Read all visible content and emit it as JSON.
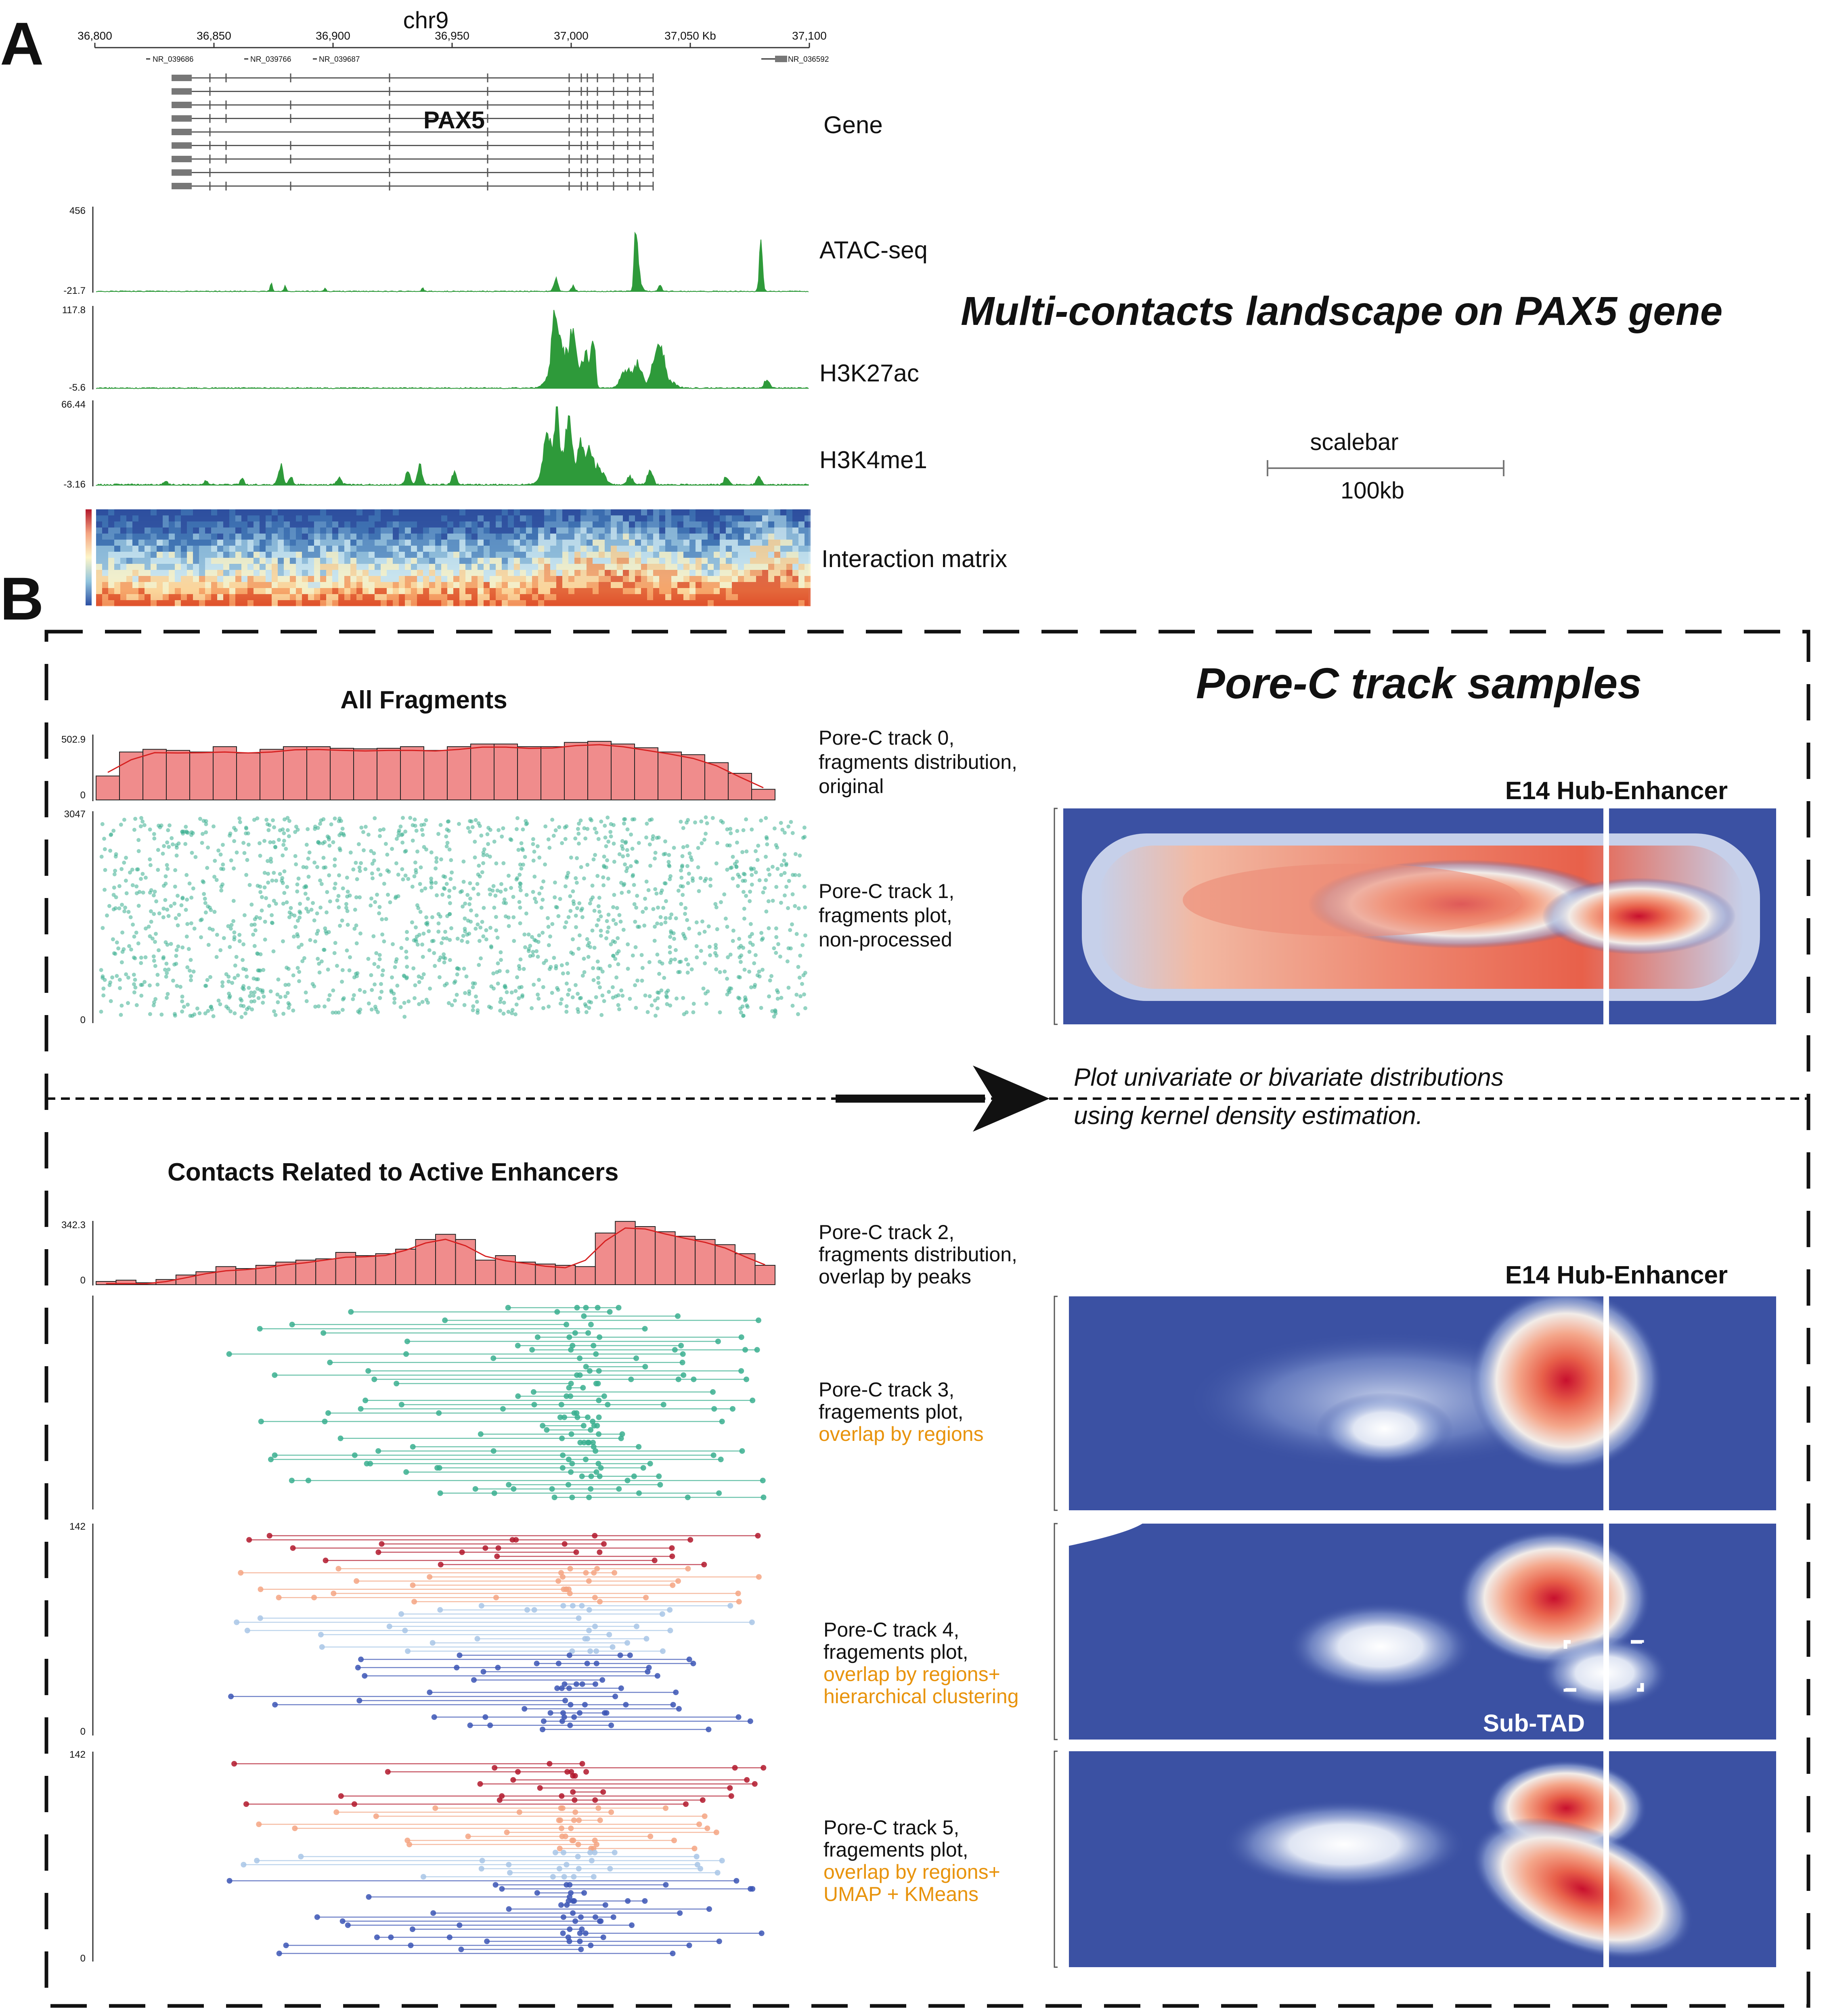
{
  "panel_a": {
    "letter": "A",
    "chrom": "chr9",
    "coords": [
      "36,800",
      "36,850",
      "36,900",
      "36,950",
      "37,000",
      "37,050 Kb",
      "37,100"
    ],
    "refseq": [
      "NR_039686",
      "NR_039766",
      "NR_039687",
      "NR_036592"
    ],
    "gene_name": "PAX5",
    "tracks": [
      {
        "label": "Gene"
      },
      {
        "label": "ATAC-seq",
        "max": "456",
        "min": "-21.7"
      },
      {
        "label": "H3K27ac",
        "max": "117.8",
        "min": "-5.6"
      },
      {
        "label": "H3K4me1",
        "max": "66.44",
        "min": "-3.16"
      },
      {
        "label": "Interaction matrix"
      }
    ],
    "title": "Multi-contacts landscape on PAX5 gene",
    "scalebar_label": "scalebar",
    "scalebar_value": "100kb"
  },
  "panel_b": {
    "letter": "B",
    "all_fragments": "All Fragments",
    "samples_title": "Pore-C track samples",
    "hub_label_1": "E14 Hub-Enhancer",
    "hub_label_2": "E14 Hub-Enhancer",
    "kde_line1": "Plot univariate or bivariate distributions",
    "kde_line2": "using kernel density estimation.",
    "contacts_title": "Contacts Related to Active Enhancers",
    "subtad": "Sub-TAD",
    "track0": {
      "max": "502.9",
      "min": "0",
      "lines": [
        "Pore-C track 0,",
        "fragments distribution,",
        "original"
      ]
    },
    "track1": {
      "max": "3047",
      "min": "0",
      "lines": [
        "Pore-C track 1,",
        "fragments plot,",
        "non-processed"
      ]
    },
    "track2": {
      "max": "342.3",
      "min": "0",
      "lines": [
        "Pore-C track 2,",
        "fragments distribution,",
        "overlap by peaks"
      ]
    },
    "track3": {
      "lines": [
        "Pore-C track 3,",
        "fragements plot,"
      ],
      "orange": [
        "overlap by regions"
      ]
    },
    "track4": {
      "max": "142",
      "min": "0",
      "lines": [
        "Pore-C track 4,",
        "fragements plot,"
      ],
      "orange": [
        "overlap by regions+",
        "hierarchical clustering"
      ]
    },
    "track5": {
      "max": "142",
      "min": "0",
      "lines": [
        "Pore-C track 5,",
        "fragements plot,"
      ],
      "orange": [
        "overlap by regions+",
        "UMAP + KMeans"
      ]
    }
  },
  "colors": {
    "signal_green": "#2e9a3a",
    "hist_fill": "#f08c8c",
    "kde_line": "#d62020",
    "scatter_teal": "#3aaf8f",
    "orange_text": "#e8930c",
    "heat_blue": "#3b51a3",
    "heat_red": "#c8102e"
  }
}
